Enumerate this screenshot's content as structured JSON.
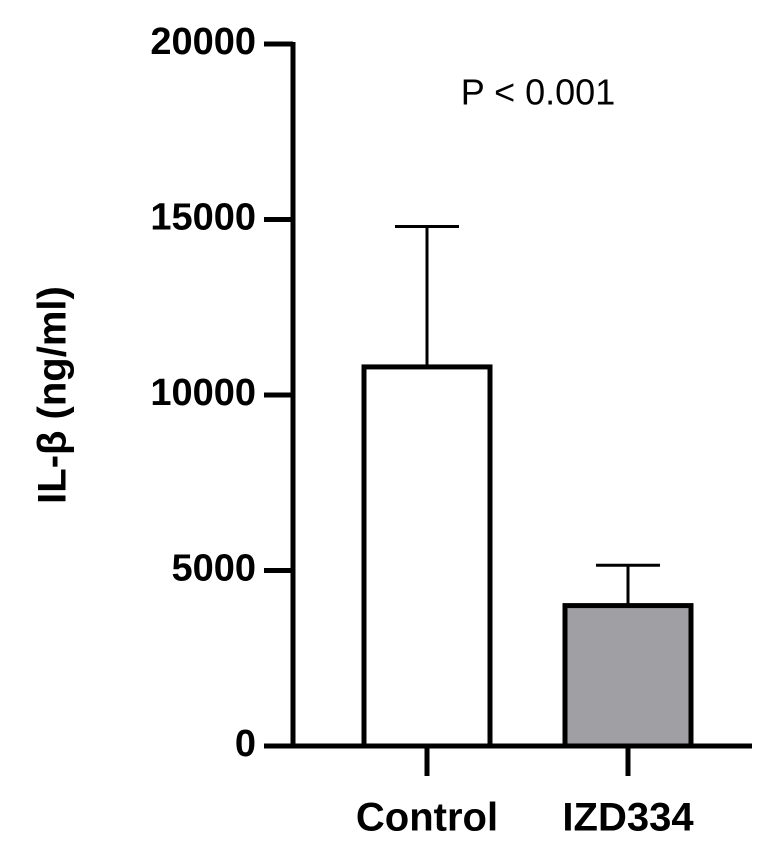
{
  "chart_data": {
    "type": "bar",
    "y_label": "IL-β (ng/ml)",
    "annotation": "P < 0.001",
    "categories": [
      "Control",
      "IZD334"
    ],
    "values": [
      10800,
      4000
    ],
    "errors": [
      4000,
      1150
    ],
    "colors": [
      "#ffffff",
      "#a0a0a4"
    ],
    "ylim": [
      0,
      20000
    ],
    "yticks": [
      0,
      5000,
      10000,
      15000,
      20000
    ]
  }
}
